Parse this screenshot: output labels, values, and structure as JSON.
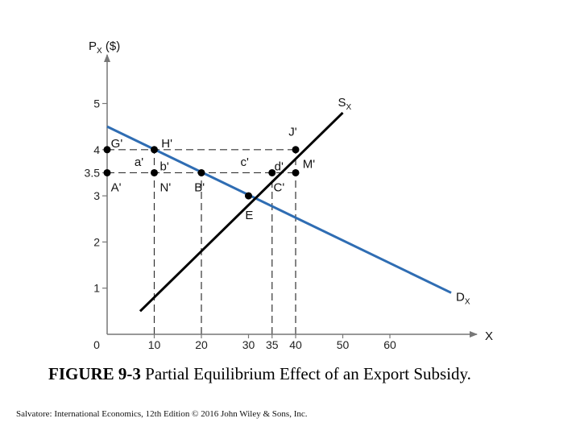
{
  "chart_data": {
    "type": "line",
    "xlabel": "X",
    "ylabel": "P",
    "ylabel_sub": "X",
    "ylabel_unit": " ($)",
    "xlim": [
      0,
      70
    ],
    "ylim": [
      0,
      5.5
    ],
    "x_ticks": [
      0,
      10,
      20,
      30,
      35,
      40,
      50,
      60
    ],
    "y_ticks": [
      {
        "value": 1,
        "label": "1"
      },
      {
        "value": 2,
        "label": "2"
      },
      {
        "value": 3,
        "label": "3"
      },
      {
        "value": 3.5,
        "label": "3.5"
      },
      {
        "value": 4,
        "label": "4"
      },
      {
        "value": 5,
        "label": "5"
      }
    ],
    "series": [
      {
        "name": "D",
        "sub": "X",
        "color": "#2f6db3",
        "points": [
          [
            0,
            4.5
          ],
          [
            73,
            0.9
          ]
        ]
      },
      {
        "name": "S",
        "sub": "X",
        "color": "#000000",
        "points": [
          [
            7,
            0.5
          ],
          [
            50,
            4.8
          ]
        ]
      }
    ],
    "points": [
      {
        "x": 0,
        "y": 4
      },
      {
        "x": 10,
        "y": 4
      },
      {
        "x": 40,
        "y": 4
      },
      {
        "x": 0,
        "y": 3.5
      },
      {
        "x": 10,
        "y": 3.5
      },
      {
        "x": 20,
        "y": 3.5
      },
      {
        "x": 35,
        "y": 3.5
      },
      {
        "x": 40,
        "y": 3.5
      },
      {
        "x": 30,
        "y": 3
      }
    ],
    "labels": [
      {
        "text": "G'",
        "x": 0.8,
        "y": 4.05
      },
      {
        "text": "H'",
        "x": 11.5,
        "y": 4.05
      },
      {
        "text": "J'",
        "x": 38.5,
        "y": 4.3
      },
      {
        "text": "a'",
        "x": 5.8,
        "y": 3.65
      },
      {
        "text": "b'",
        "x": 11.2,
        "y": 3.55
      },
      {
        "text": "c'",
        "x": 28.3,
        "y": 3.65
      },
      {
        "text": "d'",
        "x": 35.5,
        "y": 3.55
      },
      {
        "text": "M'",
        "x": 41.5,
        "y": 3.6
      },
      {
        "text": "A'",
        "x": 0.8,
        "y": 3.1
      },
      {
        "text": "N'",
        "x": 11.2,
        "y": 3.1
      },
      {
        "text": "B'",
        "x": 18.5,
        "y": 3.1
      },
      {
        "text": "C'",
        "x": 35.3,
        "y": 3.1
      },
      {
        "text": "E",
        "x": 29.3,
        "y": 2.5
      }
    ],
    "dashed": [
      {
        "from": [
          0,
          4
        ],
        "to": [
          40,
          4
        ]
      },
      {
        "from": [
          0,
          3.5
        ],
        "to": [
          40,
          3.5
        ]
      },
      {
        "from": [
          10,
          0
        ],
        "to": [
          10,
          4
        ]
      },
      {
        "from": [
          20,
          0
        ],
        "to": [
          20,
          3.5
        ]
      },
      {
        "from": [
          35,
          0
        ],
        "to": [
          35,
          3.5
        ]
      },
      {
        "from": [
          40,
          0
        ],
        "to": [
          40,
          4
        ]
      }
    ]
  },
  "caption": {
    "bold": "FIGURE 9-3",
    "text": " Partial Equilibrium Effect of an Export Subsidy."
  },
  "credit": "Salvatore: International Economics, 12th Edition © 2016 John Wiley & Sons, Inc."
}
